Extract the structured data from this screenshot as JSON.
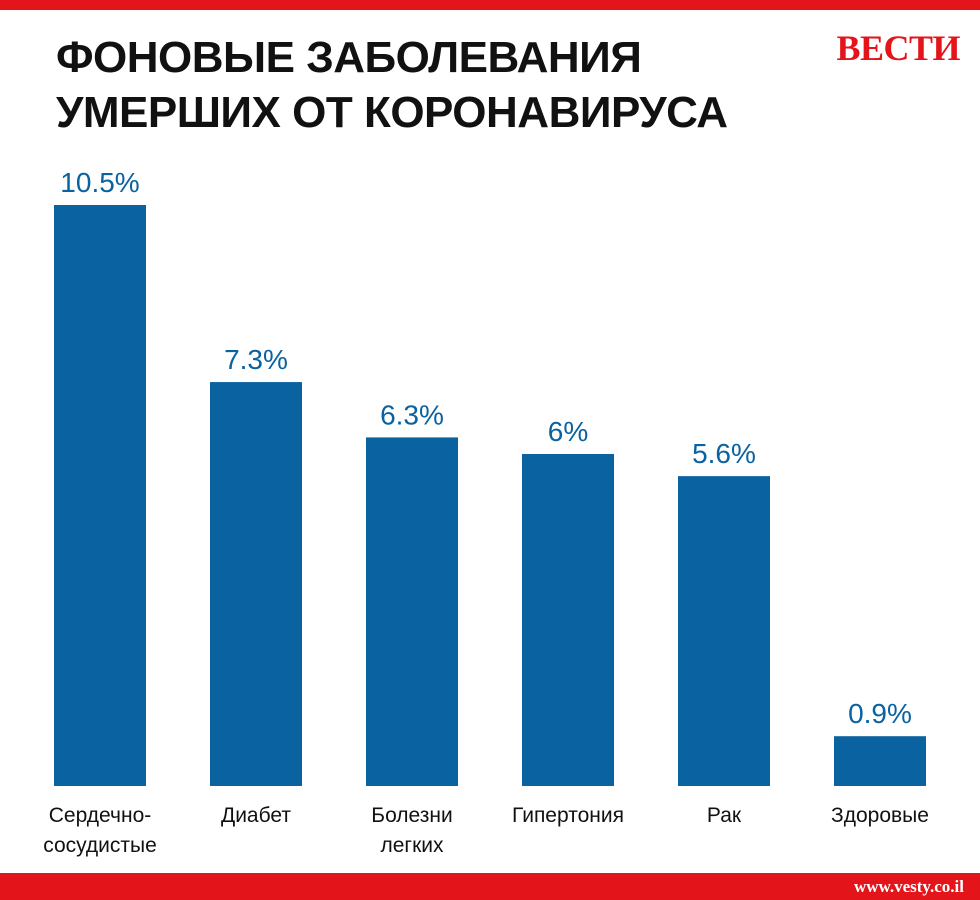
{
  "header": {
    "title_line1": "ФОНОВЫЕ ЗАБОЛЕВАНИЯ",
    "title_line2": "УМЕРШИХ ОТ КОРОНАВИРУСА",
    "logo": "ВЕСТИ"
  },
  "footer": {
    "url": "www.vesty.co.il"
  },
  "colors": {
    "accent": "#e3151b",
    "bar": "#0a62a0",
    "value_label": "#0a62a0",
    "text": "#111111"
  },
  "chart_data": {
    "type": "bar",
    "title": "ФОНОВЫЕ ЗАБОЛЕВАНИЯ УМЕРШИХ ОТ КОРОНАВИРУСА",
    "categories": [
      [
        "Сердечно-",
        "сосудистые"
      ],
      [
        "Диабет"
      ],
      [
        "Болезни",
        "легких"
      ],
      [
        "Гипертония"
      ],
      [
        "Рак"
      ],
      [
        "Здоровые"
      ]
    ],
    "values": [
      10.5,
      7.3,
      6.3,
      6,
      5.6,
      0.9
    ],
    "value_labels": [
      "10.5%",
      "7.3%",
      "6.3%",
      "6%",
      "5.6%",
      "0.9%"
    ],
    "ylim": [
      0,
      10.5
    ],
    "grid": false,
    "legend": "none"
  }
}
